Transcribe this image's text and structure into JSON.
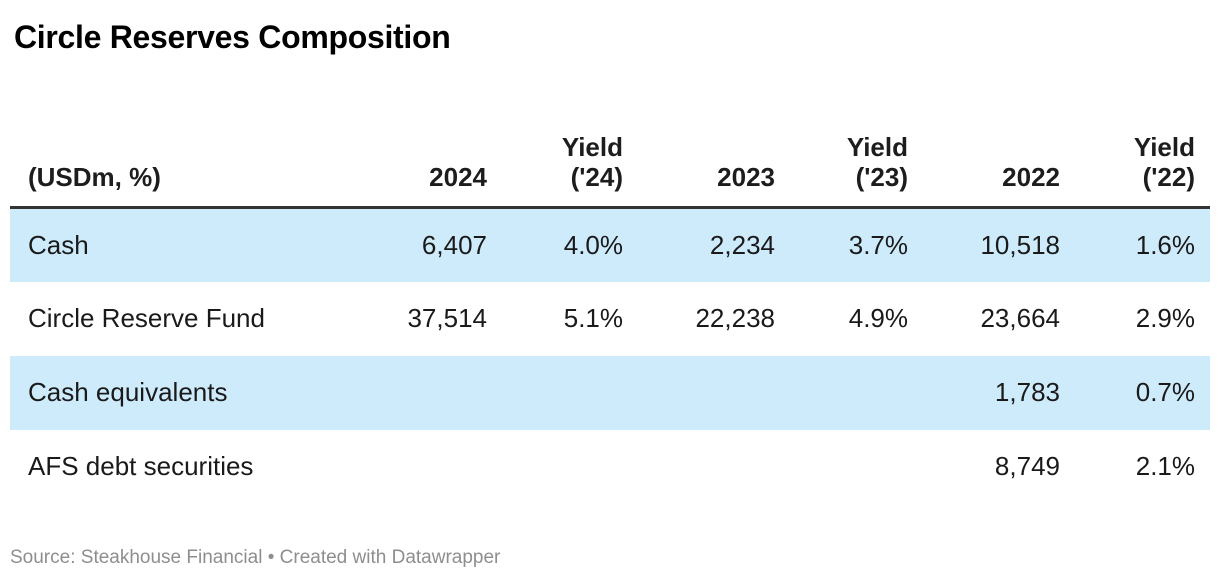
{
  "title": "Circle Reserves Composition",
  "colors": {
    "highlight_row": "#ceebfc",
    "header_border": "#333333",
    "text": "#1a1a1a",
    "footer_text": "#8e8e8e"
  },
  "table": {
    "header": {
      "label": "(USDm, %)",
      "columns": [
        {
          "line1": "",
          "line2": "2024"
        },
        {
          "line1": "Yield",
          "line2": "('24)"
        },
        {
          "line1": "",
          "line2": "2023"
        },
        {
          "line1": "Yield",
          "line2": "('23)"
        },
        {
          "line1": "",
          "line2": "2022"
        },
        {
          "line1": "Yield",
          "line2": "('22)"
        }
      ]
    },
    "rows": [
      {
        "label": "Cash",
        "highlight": true,
        "values": [
          "6,407",
          "4.0%",
          "2,234",
          "3.7%",
          "10,518",
          "1.6%"
        ]
      },
      {
        "label": "Circle Reserve Fund",
        "highlight": false,
        "values": [
          "37,514",
          "5.1%",
          "22,238",
          "4.9%",
          "23,664",
          "2.9%"
        ]
      },
      {
        "label": "Cash equivalents",
        "highlight": true,
        "values": [
          "",
          "",
          "",
          "",
          "1,783",
          "0.7%"
        ]
      },
      {
        "label": "AFS debt securities",
        "highlight": false,
        "values": [
          "",
          "",
          "",
          "",
          "8,749",
          "2.1%"
        ]
      }
    ]
  },
  "footer": {
    "prefix": "Source: ",
    "source_name": "Steakhouse Financial",
    "middle": " • Created with ",
    "brand": "Datawrapper"
  },
  "chart_data": {
    "type": "table",
    "title": "Circle Reserves Composition",
    "columns": [
      "(USDm, %)",
      "2024",
      "Yield ('24)",
      "2023",
      "Yield ('23)",
      "2022",
      "Yield ('22)"
    ],
    "rows": [
      [
        "Cash",
        6407,
        "4.0%",
        2234,
        "3.7%",
        10518,
        "1.6%"
      ],
      [
        "Circle Reserve Fund",
        37514,
        "5.1%",
        22238,
        "4.9%",
        23664,
        "2.9%"
      ],
      [
        "Cash equivalents",
        null,
        null,
        null,
        null,
        1783,
        "0.7%"
      ],
      [
        "AFS debt securities",
        null,
        null,
        null,
        null,
        8749,
        "2.1%"
      ]
    ],
    "highlighted_rows": [
      "Cash",
      "Cash equivalents"
    ],
    "units": "USDm, %",
    "source": "Steakhouse Financial",
    "tool": "Datawrapper"
  }
}
